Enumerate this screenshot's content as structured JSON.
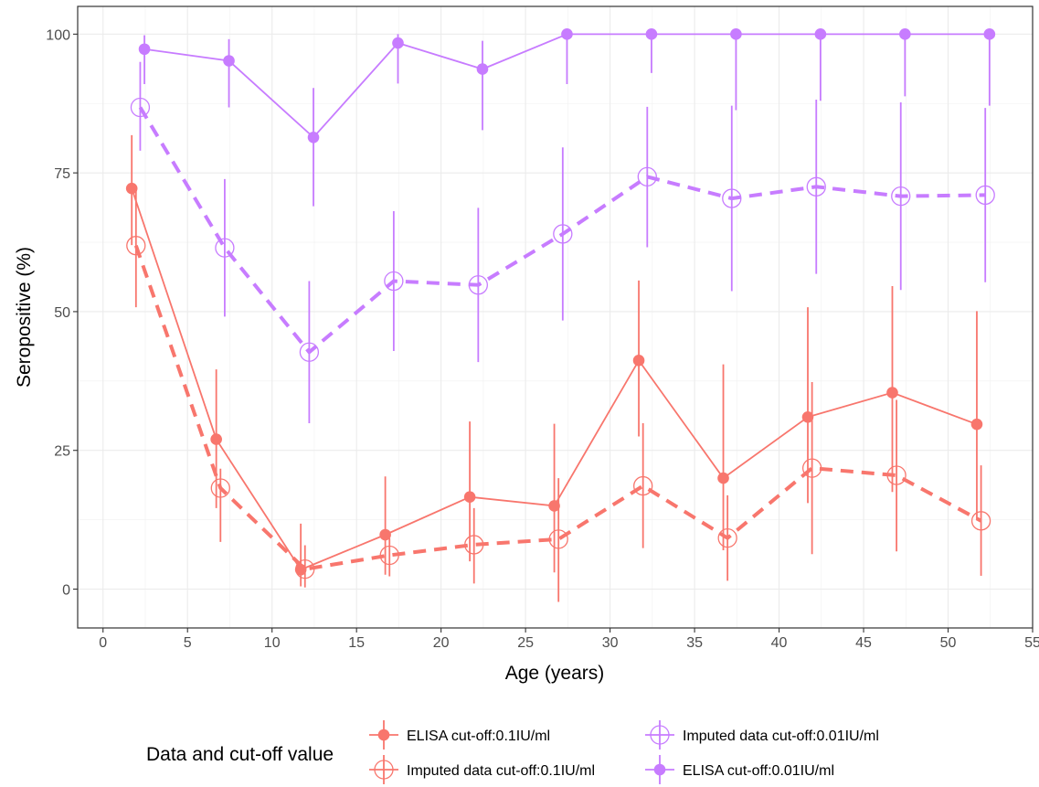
{
  "chart_data": {
    "type": "line",
    "xlabel": "Age (years)",
    "ylabel": "Seropositive (%)",
    "xlim": [
      -1.5,
      55
    ],
    "ylim": [
      -7,
      105
    ],
    "xticks": [
      0,
      5,
      10,
      15,
      20,
      25,
      30,
      35,
      40,
      45,
      50,
      55
    ],
    "yticks": [
      0,
      25,
      50,
      75,
      100
    ],
    "grid": true,
    "legend": {
      "title": "Data and cut-off value",
      "position": "bottom"
    },
    "series": [
      {
        "name": "ELISA cut-off:0.1IU/ml",
        "color": "#f8766d",
        "line": "solid",
        "marker": "filled-circle",
        "x": [
          1.7,
          6.7,
          11.7,
          16.7,
          21.7,
          26.7,
          31.7,
          36.7,
          41.7,
          46.7,
          51.7
        ],
        "y": [
          72.2,
          27.0,
          3.5,
          9.8,
          16.6,
          15.0,
          41.2,
          20.0,
          31.0,
          35.4,
          29.7
        ],
        "lower": [
          62.0,
          14.6,
          0.5,
          2.6,
          5.0,
          3.0,
          27.5,
          7.0,
          15.5,
          17.5,
          12.5
        ],
        "upper": [
          81.8,
          39.6,
          11.8,
          20.3,
          30.2,
          29.8,
          55.6,
          40.5,
          50.8,
          54.6,
          50.1
        ]
      },
      {
        "name": "Imputed data cut-off:0.1IU/ml",
        "color": "#f8766d",
        "line": "dashed",
        "marker": "crossed-circle",
        "x": [
          1.95,
          6.95,
          11.95,
          16.95,
          21.95,
          26.95,
          31.95,
          36.95,
          41.95,
          46.95,
          51.95
        ],
        "y": [
          61.9,
          18.2,
          3.6,
          6.1,
          8.0,
          9.0,
          18.6,
          9.2,
          21.8,
          20.5,
          12.3
        ],
        "lower": [
          50.8,
          8.5,
          0.3,
          2.3,
          1.0,
          -2.3,
          7.4,
          1.5,
          6.3,
          6.8,
          2.4
        ],
        "upper": [
          72.6,
          21.7,
          7.9,
          9.2,
          14.6,
          20.0,
          29.9,
          16.9,
          37.3,
          34.1,
          22.3
        ]
      },
      {
        "name": "Imputed data cut-off:0.01IU/ml",
        "color": "#c77cff",
        "line": "dashed",
        "marker": "crossed-circle",
        "x": [
          2.2,
          7.2,
          12.2,
          17.2,
          22.2,
          27.2,
          32.2,
          37.2,
          42.2,
          47.2,
          52.2
        ],
        "y": [
          86.8,
          61.5,
          42.7,
          55.5,
          54.8,
          64.0,
          74.3,
          70.4,
          72.5,
          70.8,
          71.0
        ],
        "lower": [
          79.0,
          49.1,
          29.9,
          42.9,
          40.9,
          48.4,
          61.6,
          53.7,
          56.8,
          53.9,
          55.3
        ],
        "upper": [
          95.0,
          73.9,
          55.5,
          68.1,
          68.7,
          79.6,
          86.9,
          87.1,
          88.2,
          87.7,
          86.7
        ]
      },
      {
        "name": "ELISA cut-off:0.01IU/ml",
        "color": "#c77cff",
        "line": "solid",
        "marker": "filled-circle",
        "x": [
          2.45,
          7.45,
          12.45,
          17.45,
          22.45,
          27.45,
          32.45,
          37.45,
          42.45,
          47.45,
          52.45
        ],
        "y": [
          97.3,
          95.2,
          81.4,
          98.4,
          93.7,
          100,
          100,
          100,
          100,
          100,
          100
        ],
        "lower": [
          91.0,
          86.8,
          69.0,
          91.1,
          82.7,
          91.0,
          93.0,
          86.3,
          88.0,
          88.8,
          87.1
        ],
        "upper": [
          99.8,
          99.1,
          90.3,
          100,
          98.8,
          100,
          100,
          100,
          100,
          100,
          100
        ]
      }
    ]
  }
}
